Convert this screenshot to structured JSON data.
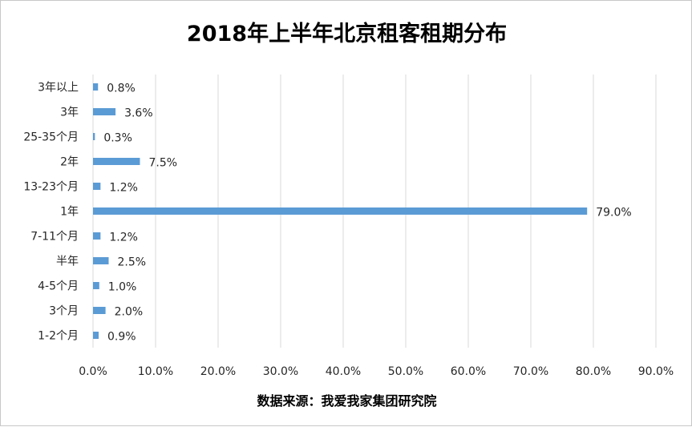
{
  "chart_data": {
    "type": "bar",
    "orientation": "horizontal",
    "title": "2018年上半年北京租客租期分布",
    "source": "数据来源：我爱我家集团研究院",
    "categories": [
      "3年以上",
      "3年",
      "25-35个月",
      "2年",
      "13-23个月",
      "1年",
      "7-11个月",
      "半年",
      "4-5个月",
      "3个月",
      "1-2个月"
    ],
    "values": [
      0.8,
      3.6,
      0.3,
      7.5,
      1.2,
      79.0,
      1.2,
      2.5,
      1.0,
      2.0,
      0.9
    ],
    "data_labels": [
      "0.8%",
      "3.6%",
      "0.3%",
      "7.5%",
      "1.2%",
      "79.0%",
      "1.2%",
      "2.5%",
      "1.0%",
      "2.0%",
      "0.9%"
    ],
    "xlim": [
      0,
      90
    ],
    "xticks": [
      "0.0%",
      "10.0%",
      "20.0%",
      "30.0%",
      "40.0%",
      "50.0%",
      "60.0%",
      "70.0%",
      "80.0%",
      "90.0%"
    ],
    "xlabel": "",
    "ylabel": "",
    "grid": "vertical",
    "legend": "none",
    "bar_color": "#5b9bd5"
  }
}
